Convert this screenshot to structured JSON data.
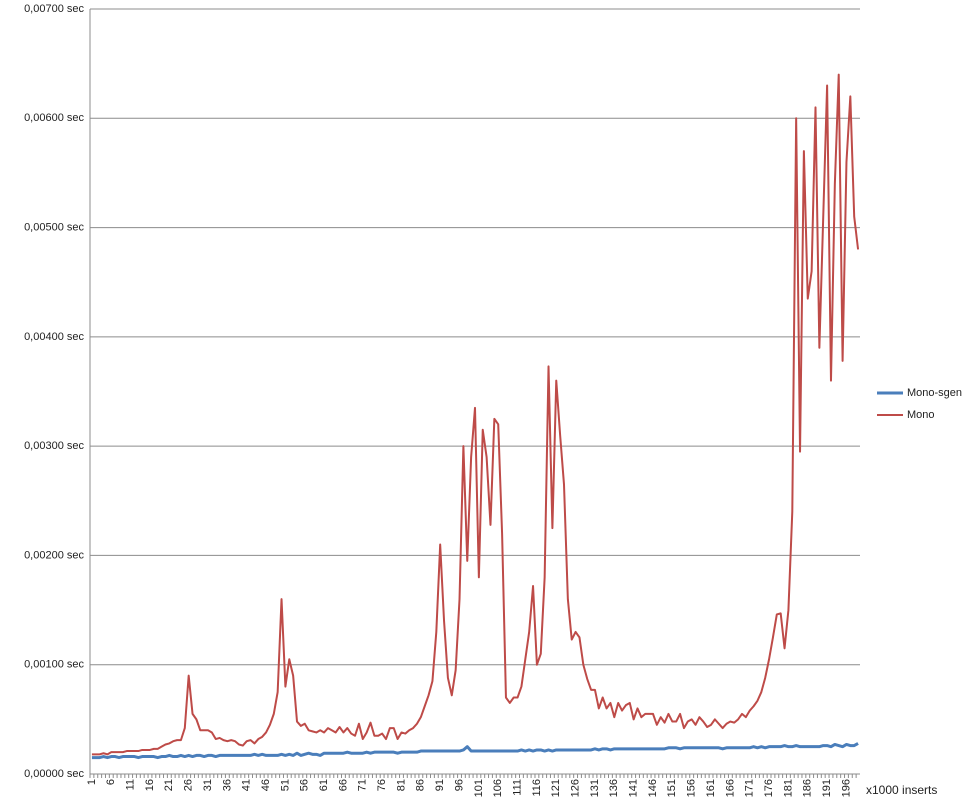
{
  "chart_data": {
    "type": "line",
    "x_label": "x1000 inserts",
    "ylim": [
      0,
      0.007
    ],
    "yticks": [
      {
        "value": 0,
        "label": "0,00000 sec"
      },
      {
        "value": 0.001,
        "label": "0,00100 sec"
      },
      {
        "value": 0.002,
        "label": "0,00200 sec"
      },
      {
        "value": 0.003,
        "label": "0,00300 sec"
      },
      {
        "value": 0.004,
        "label": "0,00400 sec"
      },
      {
        "value": 0.005,
        "label": "0,00500 sec"
      },
      {
        "value": 0.006,
        "label": "0,00600 sec"
      },
      {
        "value": 0.007,
        "label": "0,00700 sec"
      }
    ],
    "grid": true,
    "legend": "right",
    "categories": [
      1,
      null,
      null,
      null,
      null,
      6,
      null,
      null,
      null,
      null,
      11,
      null,
      null,
      null,
      null,
      16,
      null,
      null,
      null,
      null,
      21,
      null,
      null,
      null,
      null,
      26,
      null,
      null,
      null,
      null,
      31,
      null,
      null,
      null,
      null,
      36,
      null,
      null,
      null,
      null,
      41,
      null,
      null,
      null,
      null,
      46,
      null,
      null,
      null,
      null,
      51,
      null,
      null,
      null,
      null,
      56,
      null,
      null,
      null,
      null,
      61,
      null,
      null,
      null,
      null,
      66,
      null,
      null,
      null,
      null,
      71,
      null,
      null,
      null,
      null,
      76,
      null,
      null,
      null,
      null,
      81,
      null,
      null,
      null,
      null,
      86,
      null,
      null,
      null,
      null,
      91,
      null,
      null,
      null,
      null,
      96,
      null,
      null,
      null,
      null,
      101,
      null,
      null,
      null,
      null,
      106,
      null,
      null,
      null,
      null,
      111,
      null,
      null,
      null,
      null,
      116,
      null,
      null,
      null,
      null,
      121,
      null,
      null,
      null,
      null,
      126,
      null,
      null,
      null,
      null,
      131,
      null,
      null,
      null,
      null,
      136,
      null,
      null,
      null,
      null,
      141,
      null,
      null,
      null,
      null,
      146,
      null,
      null,
      null,
      null,
      151,
      null,
      null,
      null,
      null,
      156,
      null,
      null,
      null,
      null,
      161,
      null,
      null,
      null,
      null,
      166,
      null,
      null,
      null,
      null,
      171,
      null,
      null,
      null,
      null,
      176,
      null,
      null,
      null,
      null,
      181,
      null,
      null,
      null,
      null,
      186,
      null,
      null,
      null,
      null,
      191,
      null,
      null,
      null,
      null,
      196,
      null,
      null,
      null
    ],
    "series": [
      {
        "name": "Mono-sgen",
        "color": "#4a7ebb",
        "width": 3,
        "values": [
          0.00015,
          0.00015,
          0.00015,
          0.00016,
          0.00015,
          0.00016,
          0.00016,
          0.00015,
          0.00016,
          0.00016,
          0.00016,
          0.00016,
          0.00015,
          0.00016,
          0.00016,
          0.00016,
          0.00016,
          0.00015,
          0.00016,
          0.00016,
          0.00017,
          0.00016,
          0.00016,
          0.00017,
          0.00016,
          0.00017,
          0.00016,
          0.00017,
          0.00017,
          0.00016,
          0.00017,
          0.00017,
          0.00016,
          0.00017,
          0.00017,
          0.00017,
          0.00017,
          0.00017,
          0.00017,
          0.00017,
          0.00017,
          0.00017,
          0.00018,
          0.00017,
          0.00018,
          0.00017,
          0.00017,
          0.00017,
          0.00017,
          0.00018,
          0.00017,
          0.00018,
          0.00017,
          0.00019,
          0.00017,
          0.00018,
          0.00019,
          0.00018,
          0.00018,
          0.00017,
          0.00019,
          0.00019,
          0.00019,
          0.00019,
          0.00019,
          0.00019,
          0.0002,
          0.00019,
          0.00019,
          0.00019,
          0.00019,
          0.0002,
          0.00019,
          0.0002,
          0.0002,
          0.0002,
          0.0002,
          0.0002,
          0.0002,
          0.00019,
          0.0002,
          0.0002,
          0.0002,
          0.0002,
          0.0002,
          0.00021,
          0.00021,
          0.00021,
          0.00021,
          0.00021,
          0.00021,
          0.00021,
          0.00021,
          0.00021,
          0.00021,
          0.00021,
          0.00022,
          0.00025,
          0.00021,
          0.00021,
          0.00021,
          0.00021,
          0.00021,
          0.00021,
          0.00021,
          0.00021,
          0.00021,
          0.00021,
          0.00021,
          0.00021,
          0.00021,
          0.00022,
          0.00021,
          0.00022,
          0.00021,
          0.00022,
          0.00022,
          0.00021,
          0.00022,
          0.00021,
          0.00022,
          0.00022,
          0.00022,
          0.00022,
          0.00022,
          0.00022,
          0.00022,
          0.00022,
          0.00022,
          0.00022,
          0.00023,
          0.00022,
          0.00023,
          0.00023,
          0.00022,
          0.00023,
          0.00023,
          0.00023,
          0.00023,
          0.00023,
          0.00023,
          0.00023,
          0.00023,
          0.00023,
          0.00023,
          0.00023,
          0.00023,
          0.00023,
          0.00023,
          0.00024,
          0.00024,
          0.00024,
          0.00023,
          0.00024,
          0.00024,
          0.00024,
          0.00024,
          0.00024,
          0.00024,
          0.00024,
          0.00024,
          0.00024,
          0.00024,
          0.00023,
          0.00024,
          0.00024,
          0.00024,
          0.00024,
          0.00024,
          0.00024,
          0.00024,
          0.00025,
          0.00024,
          0.00025,
          0.00024,
          0.00025,
          0.00025,
          0.00025,
          0.00025,
          0.00026,
          0.00025,
          0.00025,
          0.00026,
          0.00025,
          0.00025,
          0.00025,
          0.00025,
          0.00025,
          0.00025,
          0.00026,
          0.00026,
          0.00025,
          0.00027,
          0.00026,
          0.00025,
          0.00027,
          0.00026,
          0.00026,
          0.00028
        ]
      },
      {
        "name": "Mono",
        "color": "#be4b48",
        "width": 2,
        "values": [
          0.00018,
          0.00018,
          0.00018,
          0.00019,
          0.00018,
          0.0002,
          0.0002,
          0.0002,
          0.0002,
          0.00021,
          0.00021,
          0.00021,
          0.00021,
          0.00022,
          0.00022,
          0.00022,
          0.00023,
          0.00023,
          0.00025,
          0.00027,
          0.00028,
          0.0003,
          0.00031,
          0.00031,
          0.00042,
          0.0009,
          0.00055,
          0.0005,
          0.0004,
          0.0004,
          0.0004,
          0.00038,
          0.00032,
          0.00033,
          0.00031,
          0.0003,
          0.00031,
          0.0003,
          0.00027,
          0.00026,
          0.0003,
          0.00031,
          0.00028,
          0.00032,
          0.00034,
          0.00038,
          0.00045,
          0.00055,
          0.00075,
          0.0016,
          0.0008,
          0.00105,
          0.0009,
          0.00048,
          0.00044,
          0.00046,
          0.0004,
          0.00039,
          0.00038,
          0.0004,
          0.00038,
          0.00042,
          0.0004,
          0.00038,
          0.00043,
          0.00038,
          0.00042,
          0.00037,
          0.00035,
          0.00046,
          0.00032,
          0.00038,
          0.00047,
          0.00035,
          0.00035,
          0.00037,
          0.00032,
          0.00042,
          0.00042,
          0.00032,
          0.00038,
          0.00037,
          0.0004,
          0.00042,
          0.00046,
          0.00052,
          0.00062,
          0.00072,
          0.00085,
          0.0013,
          0.0021,
          0.0014,
          0.00088,
          0.00072,
          0.00095,
          0.0016,
          0.003,
          0.00195,
          0.0029,
          0.00335,
          0.0018,
          0.00315,
          0.0029,
          0.00228,
          0.00325,
          0.0032,
          0.0022,
          0.0007,
          0.00065,
          0.0007,
          0.0007,
          0.0008,
          0.00105,
          0.0013,
          0.00172,
          0.001,
          0.0011,
          0.0018,
          0.00373,
          0.00225,
          0.0036,
          0.0031,
          0.00265,
          0.0016,
          0.00123,
          0.0013,
          0.00125,
          0.001,
          0.00087,
          0.00077,
          0.00077,
          0.0006,
          0.0007,
          0.0006,
          0.00065,
          0.00052,
          0.00065,
          0.00058,
          0.00063,
          0.00065,
          0.0005,
          0.0006,
          0.00052,
          0.00055,
          0.00055,
          0.00055,
          0.00045,
          0.00052,
          0.00047,
          0.00055,
          0.00048,
          0.00048,
          0.00055,
          0.00042,
          0.00048,
          0.0005,
          0.00045,
          0.00052,
          0.00048,
          0.00043,
          0.00045,
          0.0005,
          0.00046,
          0.00042,
          0.00046,
          0.00048,
          0.00047,
          0.0005,
          0.00055,
          0.00052,
          0.00058,
          0.00062,
          0.00067,
          0.00075,
          0.00088,
          0.00105,
          0.00125,
          0.00146,
          0.00147,
          0.00115,
          0.0015,
          0.0024,
          0.006,
          0.00295,
          0.0057,
          0.00435,
          0.0046,
          0.0061,
          0.0039,
          0.0051,
          0.0063,
          0.0036,
          0.0054,
          0.0064,
          0.00378,
          0.0056,
          0.0062,
          0.0051,
          0.0048
        ]
      }
    ]
  }
}
